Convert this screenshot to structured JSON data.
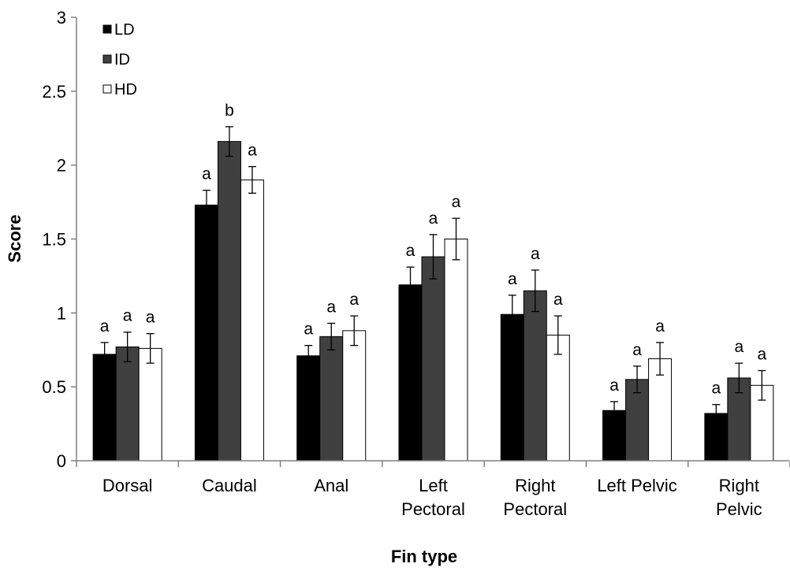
{
  "chart_data": {
    "type": "bar",
    "xlabel": "Fin type",
    "ylabel": "Score",
    "ylim": [
      0,
      3
    ],
    "yticks": [
      "0",
      "0.5",
      "1",
      "1.5",
      "2",
      "2.5",
      "3"
    ],
    "grid": false,
    "legend_position": "top-left",
    "categories": [
      [
        "Dorsal"
      ],
      [
        "Caudal"
      ],
      [
        "Anal"
      ],
      [
        "Left",
        "Pectoral"
      ],
      [
        "Right",
        "Pectoral"
      ],
      [
        "Left Pelvic"
      ],
      [
        "Right",
        "Pelvic"
      ]
    ],
    "series": [
      {
        "name": "LD",
        "color": "#000000",
        "values": [
          0.72,
          1.73,
          0.71,
          1.19,
          0.99,
          0.34,
          0.32
        ],
        "errors": [
          0.08,
          0.1,
          0.07,
          0.12,
          0.13,
          0.06,
          0.06
        ],
        "labels": [
          "a",
          "a",
          "a",
          "a",
          "a",
          "a",
          "a"
        ]
      },
      {
        "name": "ID",
        "color": "#404040",
        "values": [
          0.77,
          2.16,
          0.84,
          1.38,
          1.15,
          0.55,
          0.56
        ],
        "errors": [
          0.1,
          0.1,
          0.09,
          0.15,
          0.14,
          0.09,
          0.1
        ],
        "labels": [
          "a",
          "b",
          "a",
          "a",
          "a",
          "a",
          "a"
        ]
      },
      {
        "name": "HD",
        "color": "#ffffff",
        "values": [
          0.76,
          1.9,
          0.88,
          1.5,
          0.85,
          0.69,
          0.51
        ],
        "errors": [
          0.1,
          0.09,
          0.1,
          0.14,
          0.13,
          0.11,
          0.1
        ],
        "labels": [
          "a",
          "a",
          "a",
          "a",
          "a",
          "a",
          "a"
        ]
      }
    ]
  }
}
